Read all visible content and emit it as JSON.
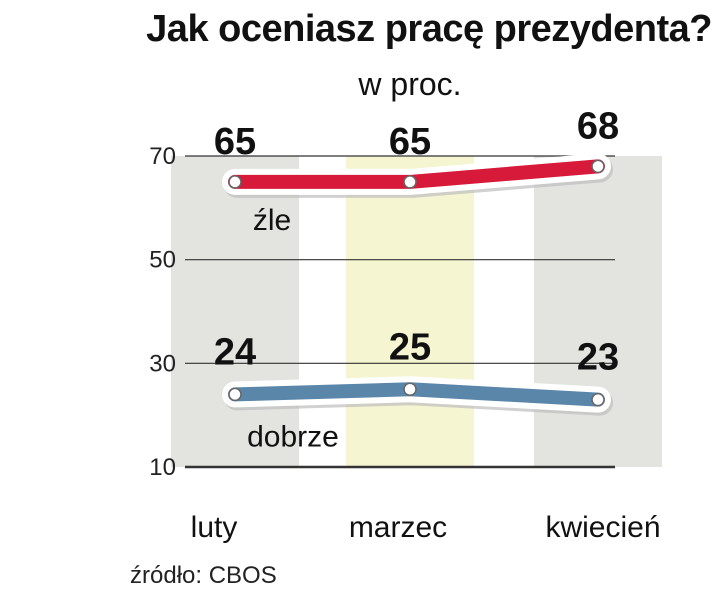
{
  "title": "Jak oceniasz pracę prezydenta?",
  "unit": "w proc.",
  "source": "źródło: CBOS",
  "chart_data": {
    "type": "line",
    "categories": [
      "luty",
      "marzec",
      "kwiecień"
    ],
    "ylim": [
      10,
      70
    ],
    "yticks": [
      10,
      30,
      50,
      70
    ],
    "grid": true,
    "series": [
      {
        "name": "źle",
        "values": [
          65,
          65,
          68
        ],
        "color": "#d7193a"
      },
      {
        "name": "dobrze",
        "values": [
          24,
          25,
          23
        ],
        "color": "#5a86aa"
      }
    ],
    "band_colors": [
      "#e3e3e0",
      "#f5f5d2",
      "#e3e3e0"
    ]
  }
}
